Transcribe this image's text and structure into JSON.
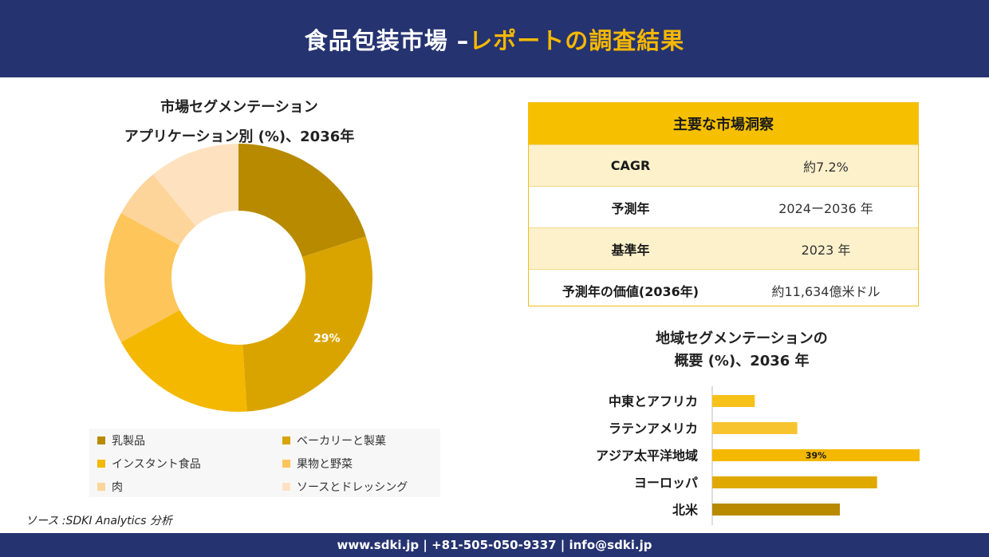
{
  "header": {
    "title_part1": "食品包装市場 –",
    "title_part2": "レポートの調査結果"
  },
  "donut": {
    "title_line1": "市場セグメンテーション",
    "title_line2": "アプリケーション別 (%)、2036年"
  },
  "insight": {
    "heading": "主要な市場洞察",
    "rows": [
      {
        "key": "CAGR",
        "value": "約7.2%"
      },
      {
        "key": "予測年",
        "value": "2024ー2036 年"
      },
      {
        "key": "基準年",
        "value": "2023 年"
      },
      {
        "key": "予測年の価値(2036年)",
        "value": "約11,634億米ドル"
      }
    ]
  },
  "bar": {
    "title_line1": "地域セグメンテーションの",
    "title_line2": "概要 (%)、2036 年"
  },
  "source": "ソース :SDKI Analytics 分析",
  "footer": "www.sdki.jp | +81-505-050-9337 | info@sdki.jp",
  "chart_data": [
    {
      "type": "pie",
      "donut": true,
      "title": "市場セグメンテーション アプリケーション別 (%)、2036年",
      "categories": [
        "乳製品",
        "ベーカリーと製菓",
        "インスタント食品",
        "果物と野菜",
        "肉",
        "ソースとドレッシング"
      ],
      "values": [
        20,
        29,
        18,
        16,
        6,
        11
      ],
      "data_labels": [
        "",
        "29%",
        "",
        "",
        "",
        ""
      ],
      "colors": [
        "#b88a00",
        "#d9a400",
        "#f4b800",
        "#fdc55a",
        "#fdd59a",
        "#fee2c0"
      ],
      "legend_position": "bottom"
    },
    {
      "type": "bar",
      "orientation": "horizontal",
      "title": "地域セグメンテーションの 概要 (%)、2036 年",
      "categories": [
        "中東とアフリカ",
        "ラテンアメリカ",
        "アジア太平洋地域",
        "ヨーロッパ",
        "北米"
      ],
      "values": [
        8,
        16,
        39,
        31,
        24
      ],
      "data_labels": [
        "",
        "",
        "39%",
        "",
        ""
      ],
      "colors": [
        "#f6c21a",
        "#f8c42e",
        "#f4b800",
        "#dfa900",
        "#b88a00"
      ],
      "xlim": [
        0,
        39
      ]
    }
  ]
}
